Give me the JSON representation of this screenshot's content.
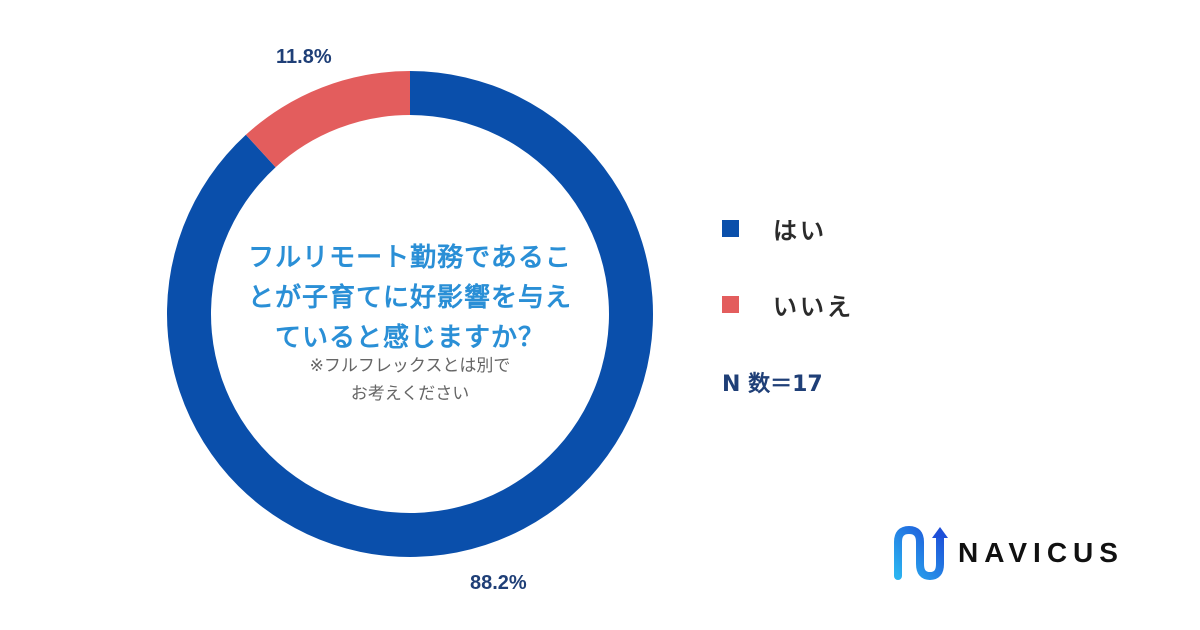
{
  "chart_data": {
    "type": "pie",
    "style": "donut",
    "title": "フルリモート勤務であることが子育てに好影響を与えていると感じますか？",
    "title_lines": [
      "フルリモート勤務であるこ",
      "とが子育てに好影響を与え",
      "ていると感じますか？"
    ],
    "note_lines": [
      "※フルフレックスとは別で",
      "お考えください"
    ],
    "categories": [
      "はい",
      "いいえ"
    ],
    "values": [
      88.2,
      11.8
    ],
    "value_labels": [
      "88.2%",
      "11.8%"
    ],
    "colors": [
      "#0a4fab",
      "#e35d5d"
    ],
    "legend_position": "right",
    "sample_size": "N 数＝17"
  },
  "brand": {
    "name": "NAVICUS",
    "icon": "navicus-logo-icon"
  }
}
